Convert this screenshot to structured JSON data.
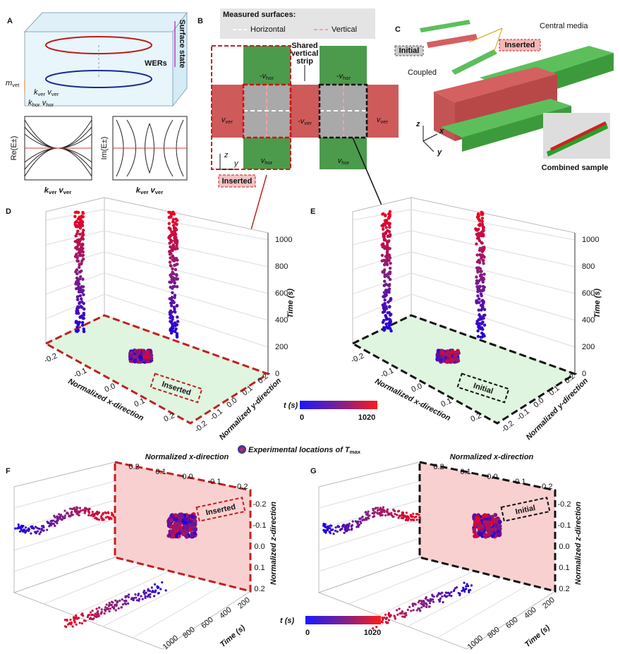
{
  "A": {
    "label": "A",
    "surface_state": "Surface state",
    "wers": "WERs",
    "m_vet": [
      [
        "m",
        "vet"
      ]
    ],
    "k_ver_v_ver": [
      [
        "k",
        "ver"
      ],
      [
        "v",
        "ver"
      ]
    ],
    "k_hor_v_hor": [
      [
        "k",
        "hor"
      ],
      [
        "v",
        "hor"
      ]
    ],
    "re": "Re(E±)",
    "im": "Im(E±)",
    "x_label_left": [
      [
        "k",
        "ver"
      ],
      [
        "v",
        "ver"
      ]
    ],
    "x_label_right": [
      [
        "k",
        "ver"
      ],
      [
        "v",
        "ver"
      ]
    ]
  },
  "B": {
    "label": "B",
    "measured": "Measured surfaces:",
    "horizontal": "Horizontal",
    "vertical": "Vertical",
    "shared": [
      "Shared",
      "vertical",
      "strip"
    ],
    "neg_v_hor_1": [
      [
        "-v",
        "hor"
      ]
    ],
    "neg_v_hor_2": [
      [
        "-v",
        "hor"
      ]
    ],
    "v_ver_left": [
      [
        "v",
        "ver"
      ]
    ],
    "neg_v_ver": [
      [
        "-v",
        "ver"
      ]
    ],
    "v_ver_right": [
      [
        "v",
        "ver"
      ]
    ],
    "v_hor_1": [
      [
        "v",
        "hor"
      ]
    ],
    "v_hor_2": [
      [
        "v",
        "hor"
      ]
    ],
    "z": "z",
    "y": "y",
    "inserted": "Inserted"
  },
  "C": {
    "label": "C",
    "central_media": "Central media",
    "initial": "Initial",
    "inserted": "Inserted",
    "coupled": "Coupled",
    "combined": "Combined sample",
    "z": "z",
    "x": "x",
    "y": "y"
  },
  "D": {
    "label": "D",
    "zticks": [
      "0",
      "200",
      "400",
      "600",
      "800",
      "1000"
    ],
    "z_title": "Time (s)",
    "xticks": [
      "-0.2",
      "-0.1",
      "0.0",
      "0.1",
      "0.2"
    ],
    "x_title": "Normalized x-direction",
    "yticks": [
      "-0.2",
      "-0.1",
      "0.0",
      "0.1",
      "0.2"
    ],
    "y_title": "Normalized y-direction",
    "tag": "Inserted"
  },
  "E": {
    "label": "E",
    "zticks": [
      "0",
      "200",
      "400",
      "600",
      "800",
      "1000"
    ],
    "z_title": "Time (s)",
    "xticks": [
      "-0.2",
      "-0.1",
      "0.0",
      "0.1",
      "0.2"
    ],
    "x_title": "Normalized x-direction",
    "yticks": [
      "-0.2",
      "-0.1",
      "0.0",
      "0.1",
      "0.2"
    ],
    "y_title": "Normalized y-direction",
    "tag": "Initial"
  },
  "colorbar_top": {
    "title": [
      [
        "t (s)",
        ""
      ]
    ],
    "min": "0",
    "max": "1020"
  },
  "legend": [
    [
      "Experimental locations of T",
      "max"
    ]
  ],
  "F": {
    "label": "F",
    "xticks": [
      "0.2",
      "0.1",
      "0.0",
      "-0.1",
      "-0.2"
    ],
    "x_title": "Normalized x-direction",
    "zticks": [
      "-0.2",
      "-0.1",
      "0.0",
      "0.1",
      "0.2"
    ],
    "z_title": "Normalized z-direction",
    "tticks": [
      "200",
      "400",
      "600",
      "800",
      "1000"
    ],
    "t_title": "Time (s)",
    "tag": "Inserted"
  },
  "G": {
    "label": "G",
    "xticks": [
      "0.2",
      "0.1",
      "0.0",
      "-0.1",
      "-0.2"
    ],
    "x_title": "Normalized x-direction",
    "zticks": [
      "-0.2",
      "-0.1",
      "0.0",
      "0.1",
      "0.2"
    ],
    "z_title": "Normalized z-direction",
    "tticks": [
      "200",
      "400",
      "600",
      "800",
      "1000"
    ],
    "t_title": "Time (s)",
    "tag": "Initial"
  },
  "colorbar_bottom": {
    "title": "t (s)",
    "min": "0",
    "max": "1020"
  }
}
